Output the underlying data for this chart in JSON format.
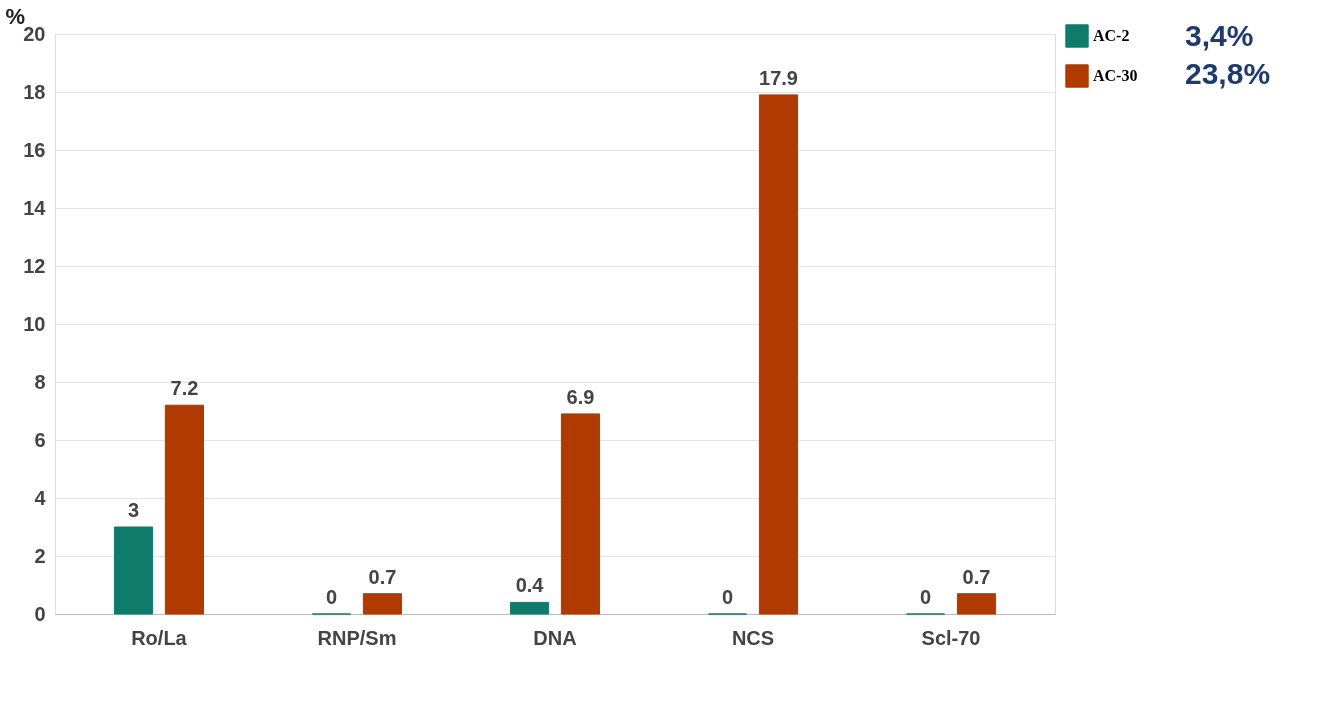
{
  "chart_data": {
    "type": "bar",
    "ylabel": "%",
    "categories": [
      "Ro/La",
      "RNP/Sm",
      "DNA",
      "NCS",
      "Scl-70"
    ],
    "series": [
      {
        "name": "AC-2",
        "color": "#0e7b6b",
        "values": [
          3,
          0,
          0.4,
          0,
          0
        ]
      },
      {
        "name": "AC-30",
        "color": "#b03a00",
        "values": [
          7.2,
          0.7,
          6.9,
          17.9,
          0.7
        ]
      }
    ],
    "ylim": [
      0,
      20
    ],
    "yticks": [
      0,
      2,
      4,
      6,
      8,
      10,
      12,
      14,
      16,
      18,
      20
    ],
    "grid": "y",
    "legend": "top right",
    "data_labels": true,
    "annotations": [
      "3,4%",
      "23,8%"
    ]
  }
}
